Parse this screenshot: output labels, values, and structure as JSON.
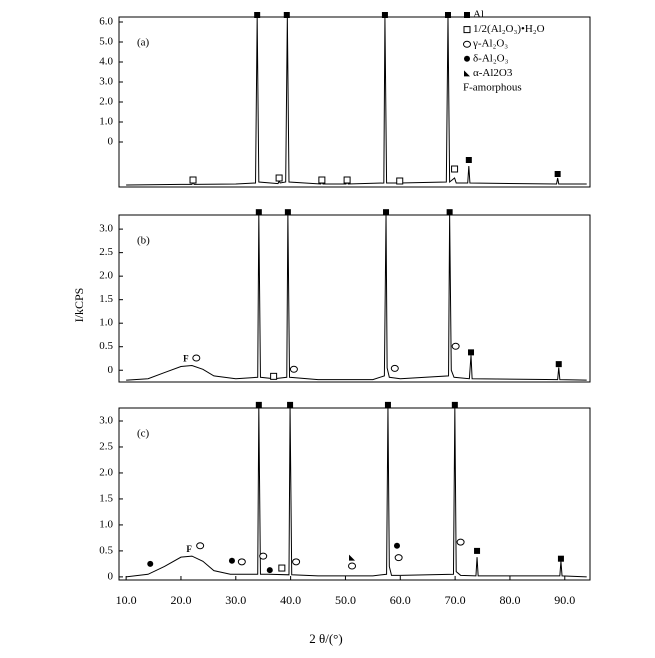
{
  "chart_data": {
    "type": "line",
    "x_label": "2 θ/(°)",
    "y_label": "I/kCPS",
    "xlim": [
      8.7,
      94.6
    ],
    "xticks": [
      {
        "value": 10,
        "label": "10.0"
      },
      {
        "value": 20,
        "label": "20.0"
      },
      {
        "value": 30,
        "label": "30.0"
      },
      {
        "value": 40,
        "label": "40.0"
      },
      {
        "value": 50,
        "label": "50.0"
      },
      {
        "value": 60,
        "label": "60.0"
      },
      {
        "value": 70,
        "label": "70.0"
      },
      {
        "value": 80,
        "label": "80.0"
      },
      {
        "value": 90,
        "label": "90.0"
      }
    ],
    "legend": [
      {
        "symbol": "square-filled",
        "label": "Al"
      },
      {
        "symbol": "square-open",
        "label": "1/2(Al₂O₃)•H₂O"
      },
      {
        "symbol": "circle-open",
        "label": "γ-Al₂O₃"
      },
      {
        "symbol": "circle-filled",
        "label": "δ-Al₂O₃"
      },
      {
        "symbol": "triangle-filled",
        "label": "α-Al2O3"
      },
      {
        "label": "F-amorphous"
      }
    ],
    "panels": [
      {
        "label": "(a)",
        "color": "#000000",
        "ylim": [
          -2.25,
          6.25
        ],
        "yticks": [
          0,
          {
            "value": 1,
            "label": "1.0"
          },
          {
            "value": 2,
            "label": "2.0"
          },
          {
            "value": 3,
            "label": "3.0"
          },
          {
            "value": 4,
            "label": "4.0"
          },
          {
            "value": 5,
            "label": "5.0"
          },
          {
            "value": 6,
            "label": "6.0"
          }
        ],
        "x": [
          10,
          20,
          22.0,
          22.2,
          22.4,
          30,
          33.6,
          33.9,
          34.2,
          37.7,
          37.9,
          38.1,
          39.1,
          39.4,
          39.7,
          45.5,
          45.7,
          45.9,
          50.1,
          50.3,
          50.5,
          57.0,
          57.2,
          57.5,
          59.9,
          68.4,
          68.7,
          69.0,
          69.9,
          70.2,
          72.3,
          72.5,
          72.7,
          88.5,
          88.7,
          88.9,
          94.0
        ],
        "values": [
          -2.15,
          -2.12,
          -2.12,
          -2.0,
          -2.12,
          -2.1,
          -2.05,
          6.25,
          -2.0,
          -2.08,
          -1.95,
          -2.05,
          -2.0,
          6.25,
          -2.0,
          -2.1,
          -2.0,
          -2.1,
          -2.1,
          -2.0,
          -2.1,
          -2.05,
          6.25,
          -2.05,
          -2.05,
          -2.0,
          6.25,
          -2.0,
          -1.8,
          -2.05,
          -2.05,
          -1.2,
          -2.05,
          -2.1,
          -1.8,
          -2.1,
          -2.1
        ],
        "markers": [
          {
            "symbol": "square-filled",
            "x": [
              33.9,
              39.3,
              57.2,
              68.7,
              72.5,
              88.7
            ],
            "y": [
              6.35,
              6.35,
              6.35,
              6.35,
              -0.9,
              -1.6
            ]
          },
          {
            "symbol": "square-open",
            "x": [
              22.2,
              37.9,
              45.7,
              50.3,
              59.9,
              69.9
            ],
            "y": [
              -1.9,
              -1.8,
              -1.9,
              -1.9,
              -1.95,
              -1.35
            ]
          }
        ]
      },
      {
        "label": "(b)",
        "color": "#000000",
        "ylim": [
          -0.25,
          3.3
        ],
        "yticks": [
          0,
          0.5,
          {
            "value": 1,
            "label": "1.0"
          },
          1.5,
          {
            "value": 2,
            "label": "2.0"
          },
          2.5,
          {
            "value": 3,
            "label": "3.0"
          }
        ],
        "x": [
          10,
          14,
          17,
          20,
          22,
          24,
          26,
          30,
          34.0,
          34.2,
          34.5,
          37,
          39.3,
          39.5,
          39.8,
          45,
          55,
          57.1,
          57.4,
          57.6,
          58,
          60,
          68.8,
          69.0,
          69.3,
          69.8,
          72.6,
          72.9,
          73.1,
          88.7,
          88.9,
          89.1,
          94
        ],
        "values": [
          -0.21,
          -0.18,
          -0.05,
          0.08,
          0.1,
          0.02,
          -0.12,
          -0.18,
          -0.15,
          3.3,
          -0.15,
          -0.18,
          -0.15,
          3.3,
          -0.15,
          -0.2,
          -0.2,
          -0.12,
          3.3,
          0.05,
          -0.15,
          -0.18,
          -0.12,
          3.3,
          0.0,
          -0.15,
          -0.18,
          0.32,
          -0.18,
          -0.2,
          0.06,
          -0.2,
          -0.21
        ],
        "markers": [
          {
            "symbol": "square-filled",
            "x": [
              34.2,
              39.5,
              57.4,
              69.0,
              72.9,
              88.9
            ],
            "y": [
              3.36,
              3.36,
              3.36,
              3.36,
              0.38,
              0.13
            ]
          },
          {
            "symbol": "square-open",
            "x": [
              36.9
            ],
            "y": [
              -0.13
            ]
          },
          {
            "symbol": "circle-open",
            "x": [
              22.8,
              40.6,
              59.0,
              70.1
            ],
            "y": [
              0.26,
              0.02,
              0.04,
              0.51
            ]
          },
          {
            "label": "F",
            "x": [
              20.9
            ],
            "y": [
              0.23
            ]
          }
        ]
      },
      {
        "label": "(c)",
        "color": "#000000",
        "ylim": [
          -0.06,
          3.25
        ],
        "yticks": [
          0,
          0.5,
          {
            "value": 1,
            "label": "1.0"
          },
          1.5,
          {
            "value": 2,
            "label": "2.0"
          },
          2.5,
          {
            "value": 3,
            "label": "3.0"
          }
        ],
        "x": [
          10,
          14,
          17,
          20,
          22,
          24,
          26,
          29,
          34.0,
          34.2,
          34.5,
          36,
          39.7,
          39.9,
          40.2,
          45,
          55,
          57.5,
          57.75,
          58.0,
          58.4,
          60,
          69.7,
          69.95,
          70.2,
          71,
          73.8,
          74.0,
          74.2,
          89.1,
          89.3,
          89.5,
          94
        ],
        "values": [
          0.0,
          0.05,
          0.2,
          0.38,
          0.4,
          0.3,
          0.12,
          0.05,
          0.05,
          3.25,
          0.05,
          0.05,
          0.04,
          3.25,
          0.04,
          0.02,
          0.02,
          0.05,
          3.25,
          0.2,
          0.03,
          0.03,
          0.05,
          3.25,
          0.1,
          0.03,
          0.02,
          0.38,
          0.02,
          0.02,
          0.3,
          0.02,
          0.0
        ],
        "markers": [
          {
            "symbol": "square-filled",
            "x": [
              34.2,
              39.9,
              57.75,
              69.95,
              74.0,
              89.3
            ],
            "y": [
              3.31,
              3.31,
              3.31,
              3.31,
              0.5,
              0.35
            ]
          },
          {
            "symbol": "circle-filled",
            "x": [
              14.4,
              29.3,
              36.2,
              59.4
            ],
            "y": [
              0.25,
              0.31,
              0.13,
              0.6
            ]
          },
          {
            "symbol": "circle-open",
            "x": [
              23.5,
              31.1,
              35.0,
              41.0,
              51.2,
              59.7,
              71.0
            ],
            "y": [
              0.6,
              0.29,
              0.4,
              0.29,
              0.21,
              0.37,
              0.67
            ]
          },
          {
            "symbol": "square-open",
            "x": [
              38.4
            ],
            "y": [
              0.17
            ]
          },
          {
            "symbol": "triangle-filled",
            "x": [
              51.2
            ],
            "y": [
              0.37
            ]
          },
          {
            "label": "F",
            "x": [
              21.5
            ],
            "y": [
              0.52
            ]
          }
        ]
      }
    ]
  }
}
